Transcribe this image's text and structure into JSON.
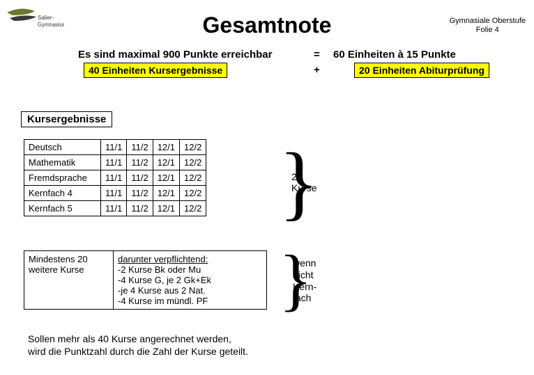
{
  "logo": {
    "topColor": "#6b7a30",
    "bottomColor": "#3a3a3a",
    "text1": "Salier-",
    "text2": "Gymnasium"
  },
  "title": "Gesamtnote",
  "headerRight": {
    "line1": "Gymnasiale Oberstufe",
    "line2": "Folie 4"
  },
  "maxLine": "Es sind maximal 900 Punkte erreichbar",
  "yellow1": "40 Einheiten Kursergebnisse",
  "eq": "=",
  "right60": "60 Einheiten à 15 Punkte",
  "plus": "+",
  "yellow2": "20 Einheiten Abiturprüfung",
  "sectionTitle": "Kursergebnisse",
  "semesters": [
    "11/1",
    "11/2",
    "12/1",
    "12/2"
  ],
  "subjects": [
    "Deutsch",
    "Mathematik",
    "Fremdsprache",
    "Kernfach 4",
    "Kernfach 5"
  ],
  "bracket1Label": {
    "l1": "20",
    "l2": "Kurse"
  },
  "lower": {
    "left": {
      "l1": "Mindestens 20",
      "l2": "weitere Kurse"
    },
    "rightHead": "darunter verpflichtend:",
    "rightLines": [
      "-2 Kurse Bk oder Mu",
      "-4 Kurse G, je 2 Gk+Ek",
      "-je 4 Kurse aus 2 Nat.",
      "-4 Kurse im mündl. PF"
    ]
  },
  "bracket2Label": {
    "l1": "wenn",
    "l2": "nicht",
    "l3": "Kern-",
    "l4": "fach"
  },
  "bottom": {
    "l1": "Sollen mehr als 40 Kurse angerechnet werden,",
    "l2": "wird die Punktzahl durch die Zahl der Kurse geteilt."
  }
}
